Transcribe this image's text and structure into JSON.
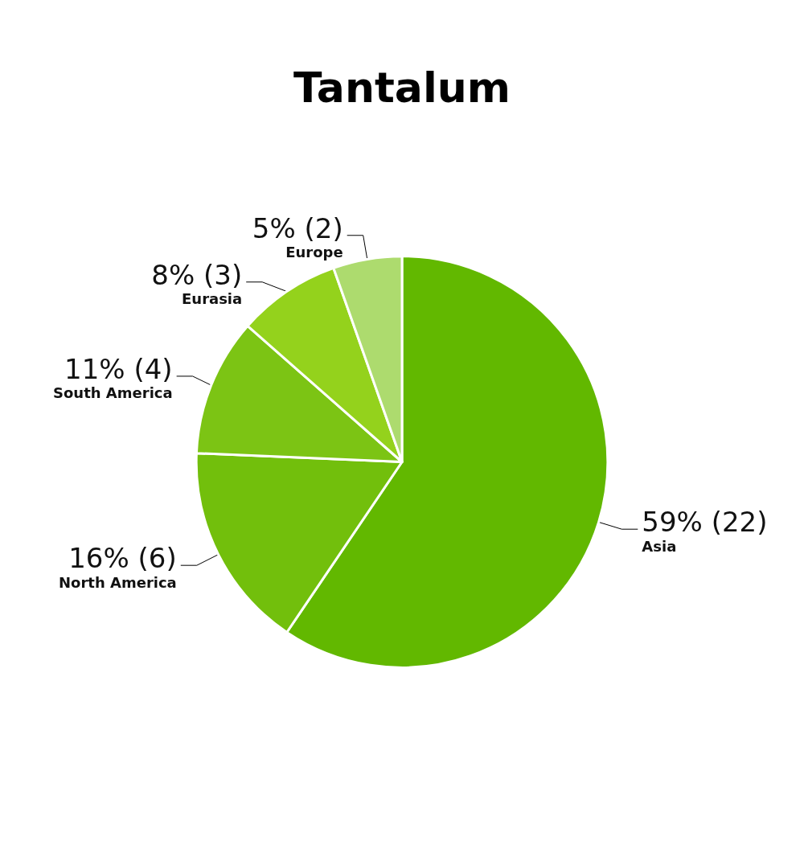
{
  "chart_data": {
    "type": "pie",
    "title": "Tantalum",
    "categories": [
      "Asia",
      "North America",
      "South America",
      "Eurasia",
      "Europe"
    ],
    "values": [
      22,
      6,
      4,
      3,
      2
    ],
    "value_labels": [
      "59% (22)",
      "16% (6)",
      "11% (4)",
      "8% (3)",
      "5% (2)"
    ],
    "colors": [
      "#62b800",
      "#72bf0c",
      "#7cc414",
      "#94d21c",
      "#addb6e"
    ],
    "legend": false
  }
}
